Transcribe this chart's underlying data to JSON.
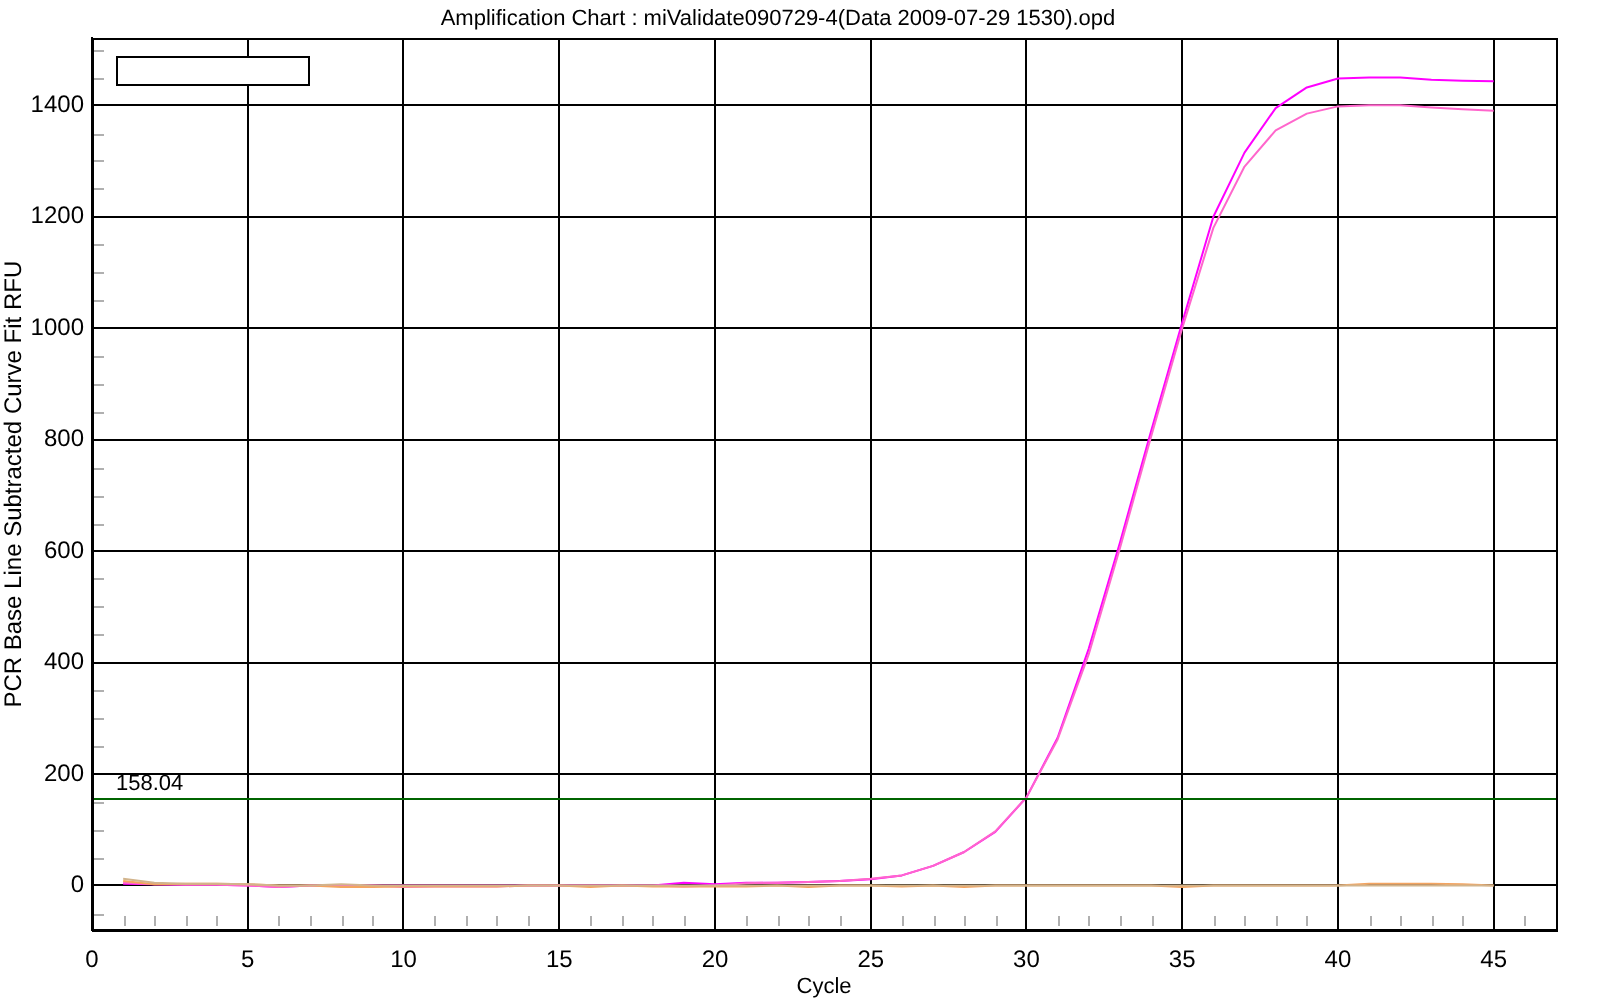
{
  "chart_data": {
    "type": "line",
    "title": "Amplification Chart : miValidate090729-4(Data 2009-07-29 1530).opd",
    "xlabel": "Cycle",
    "ylabel": "PCR Base Line Subtracted Curve Fit RFU",
    "x": [
      1,
      2,
      3,
      4,
      5,
      6,
      7,
      8,
      9,
      10,
      11,
      12,
      13,
      14,
      15,
      16,
      17,
      18,
      19,
      20,
      21,
      22,
      23,
      24,
      25,
      26,
      27,
      28,
      29,
      30,
      31,
      32,
      33,
      34,
      35,
      36,
      37,
      38,
      39,
      40,
      41,
      42,
      43,
      44,
      45
    ],
    "series": [
      {
        "color": "#d2b48c",
        "values": [
          12,
          5,
          3,
          3,
          2,
          0,
          0,
          2,
          0,
          0,
          0,
          0,
          0,
          0,
          0,
          0,
          0,
          0,
          0,
          0,
          0,
          0,
          0,
          0,
          0,
          0,
          0,
          0,
          0,
          0,
          0,
          0,
          0,
          0,
          0,
          0,
          0,
          0,
          0,
          0,
          0,
          0,
          0,
          0,
          0
        ]
      },
      {
        "color": "#f4a460",
        "values": [
          8,
          2,
          3,
          3,
          2,
          0,
          0,
          -3,
          -3,
          -2,
          -2,
          -2,
          -2,
          0,
          0,
          -3,
          0,
          -2,
          -2,
          -2,
          -2,
          0,
          -3,
          0,
          0,
          -2,
          0,
          -3,
          0,
          0,
          0,
          0,
          0,
          0,
          -3,
          0,
          0,
          0,
          0,
          0,
          3,
          3,
          3,
          2,
          0
        ]
      },
      {
        "color": "#ff66cc",
        "values": [
          5,
          2,
          1,
          1,
          0,
          -3,
          0,
          0,
          0,
          -3,
          -2,
          -2,
          -2,
          0,
          0,
          0,
          0,
          0,
          -2,
          0,
          4,
          5,
          6,
          8,
          12,
          18,
          35,
          60,
          97,
          158,
          262,
          415,
          605,
          805,
          1000,
          1180,
          1290,
          1355,
          1385,
          1398,
          1400,
          1400,
          1396,
          1393,
          1390
        ]
      },
      {
        "color": "#ff00ff",
        "values": [
          3,
          2,
          1,
          1,
          0,
          -3,
          0,
          0,
          0,
          0,
          0,
          0,
          0,
          0,
          0,
          0,
          0,
          0,
          5,
          2,
          5,
          5,
          6,
          8,
          11,
          18,
          35,
          60,
          96,
          158,
          265,
          425,
          615,
          815,
          1010,
          1200,
          1315,
          1395,
          1432,
          1448,
          1450,
          1450,
          1446,
          1444,
          1443
        ]
      }
    ],
    "xlim": [
      0,
      47
    ],
    "xticks": [
      0,
      {
        "value": 1,
        "label": null
      },
      {
        "value": 2,
        "label": null
      },
      {
        "value": 3,
        "label": null
      },
      {
        "value": 4,
        "label": null
      },
      5,
      {
        "value": 6,
        "label": null
      },
      {
        "value": 7,
        "label": null
      },
      {
        "value": 8,
        "label": null
      },
      {
        "value": 9,
        "label": null
      },
      10,
      {
        "value": 11,
        "label": null
      },
      {
        "value": 12,
        "label": null
      },
      {
        "value": 13,
        "label": null
      },
      {
        "value": 14,
        "label": null
      },
      15,
      {
        "value": 16,
        "label": null
      },
      {
        "value": 17,
        "label": null
      },
      {
        "value": 18,
        "label": null
      },
      {
        "value": 19,
        "label": null
      },
      20,
      {
        "value": 21,
        "label": null
      },
      {
        "value": 22,
        "label": null
      },
      {
        "value": 23,
        "label": null
      },
      {
        "value": 24,
        "label": null
      },
      25,
      {
        "value": 26,
        "label": null
      },
      {
        "value": 27,
        "label": null
      },
      {
        "value": 28,
        "label": null
      },
      {
        "value": 29,
        "label": null
      },
      30,
      {
        "value": 31,
        "label": null
      },
      {
        "value": 32,
        "label": null
      },
      {
        "value": 33,
        "label": null
      },
      {
        "value": 34,
        "label": null
      },
      35,
      {
        "value": 36,
        "label": null
      },
      {
        "value": 37,
        "label": null
      },
      {
        "value": 38,
        "label": null
      },
      {
        "value": 39,
        "label": null
      },
      40,
      {
        "value": 41,
        "label": null
      },
      {
        "value": 42,
        "label": null
      },
      {
        "value": 43,
        "label": null
      },
      {
        "value": 44,
        "label": null
      },
      45,
      {
        "value": 46,
        "label": null
      }
    ],
    "ylim": [
      -80,
      1520
    ],
    "yticks": [
      {
        "value": -50,
        "label": null
      },
      0,
      {
        "value": 50,
        "label": null
      },
      {
        "value": 100,
        "label": null
      },
      {
        "value": 150,
        "label": null
      },
      200,
      {
        "value": 250,
        "label": null
      },
      {
        "value": 300,
        "label": null
      },
      {
        "value": 350,
        "label": null
      },
      400,
      {
        "value": 450,
        "label": null
      },
      {
        "value": 500,
        "label": null
      },
      {
        "value": 550,
        "label": null
      },
      600,
      {
        "value": 650,
        "label": null
      },
      {
        "value": 700,
        "label": null
      },
      {
        "value": 750,
        "label": null
      },
      800,
      {
        "value": 850,
        "label": null
      },
      {
        "value": 900,
        "label": null
      },
      {
        "value": 950,
        "label": null
      },
      1000,
      {
        "value": 1050,
        "label": null
      },
      {
        "value": 1100,
        "label": null
      },
      {
        "value": 1150,
        "label": null
      },
      1200,
      {
        "value": 1250,
        "label": null
      },
      {
        "value": 1300,
        "label": null
      },
      {
        "value": 1350,
        "label": null
      },
      1400,
      {
        "value": 1450,
        "label": null
      },
      {
        "value": 1500,
        "label": null
      }
    ],
    "grid": true,
    "legend": false,
    "marker": "none",
    "ref_lines": [
      {
        "axis": "y",
        "value": 158.04,
        "label": "158.04",
        "color": "#006400"
      }
    ]
  }
}
